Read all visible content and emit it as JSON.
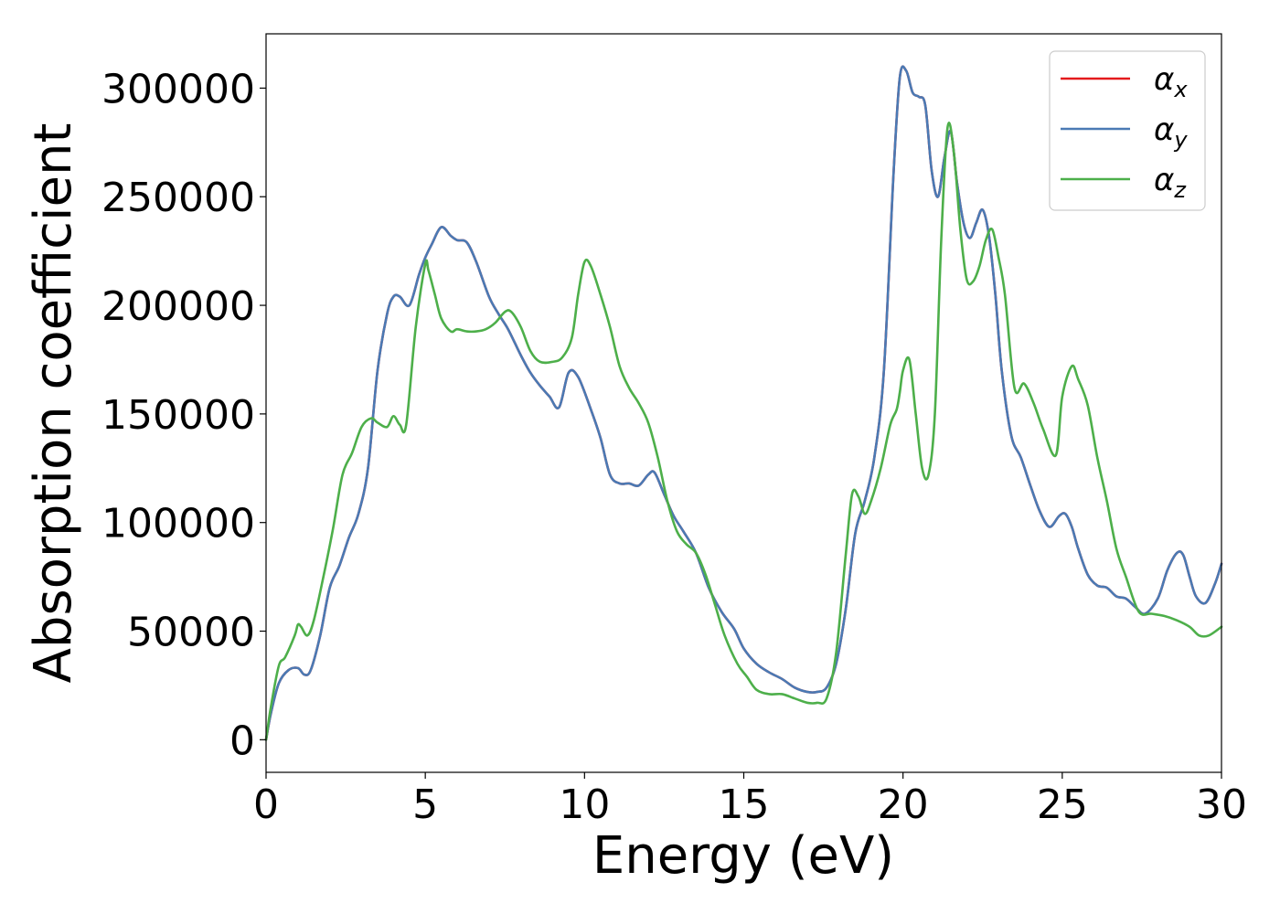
{
  "chart_data": {
    "type": "line",
    "xlabel": "Energy (eV)",
    "ylabel": "Absorption coefficient",
    "xlim": [
      0,
      30
    ],
    "ylim": [
      -15000,
      325000
    ],
    "xticks": [
      0,
      5,
      10,
      15,
      20,
      25,
      30
    ],
    "yticks": [
      0,
      50000,
      100000,
      150000,
      200000,
      250000,
      300000
    ],
    "grid": false,
    "legend_position": "top-right",
    "series": [
      {
        "name": "α",
        "subscript": "x",
        "color": "#e41a1c",
        "x": [
          0,
          0.15,
          0.4,
          0.7,
          1.0,
          1.2,
          1.4,
          1.7,
          2.0,
          2.3,
          2.6,
          2.9,
          3.2,
          3.5,
          3.8,
          4.0,
          4.2,
          4.5,
          4.8,
          5.0,
          5.2,
          5.5,
          5.8,
          6.0,
          6.3,
          6.6,
          7.0,
          7.3,
          7.6,
          8.0,
          8.3,
          8.6,
          8.9,
          9.2,
          9.5,
          9.8,
          10.2,
          10.5,
          10.8,
          11.1,
          11.4,
          11.7,
          12.0,
          12.2,
          12.5,
          12.8,
          13.1,
          13.5,
          13.9,
          14.3,
          14.7,
          15.0,
          15.4,
          15.8,
          16.2,
          16.6,
          17.0,
          17.3,
          17.6,
          17.9,
          18.2,
          18.5,
          18.8,
          19.1,
          19.4,
          19.7,
          19.9,
          20.1,
          20.3,
          20.5,
          20.7,
          20.9,
          21.1,
          21.3,
          21.5,
          21.7,
          21.9,
          22.1,
          22.3,
          22.5,
          22.7,
          22.9,
          23.1,
          23.4,
          23.7,
          24.0,
          24.3,
          24.6,
          24.9,
          25.1,
          25.3,
          25.5,
          25.8,
          26.1,
          26.4,
          26.7,
          27.0,
          27.3,
          27.6,
          28.0,
          28.3,
          28.6,
          28.8,
          29.0,
          29.2,
          29.5,
          29.8,
          30.0
        ],
        "y": [
          0,
          12000,
          26000,
          32000,
          33000,
          30000,
          32000,
          48000,
          70000,
          80000,
          93000,
          104000,
          125000,
          170000,
          196000,
          204000,
          204000,
          200000,
          214000,
          222000,
          228000,
          236000,
          232000,
          230000,
          229000,
          220000,
          204000,
          196000,
          189000,
          177000,
          169000,
          163000,
          158000,
          153000,
          169000,
          167000,
          152000,
          139000,
          122000,
          118000,
          118000,
          117000,
          122000,
          123000,
          113000,
          103000,
          96000,
          86000,
          70000,
          59000,
          51000,
          42000,
          35000,
          31000,
          28000,
          24000,
          22000,
          22000,
          24000,
          35000,
          60000,
          95000,
          110000,
          130000,
          170000,
          260000,
          305000,
          308000,
          298000,
          296000,
          292000,
          262000,
          250000,
          268000,
          280000,
          256000,
          238000,
          231000,
          238000,
          244000,
          232000,
          205000,
          170000,
          140000,
          130000,
          117000,
          105000,
          98000,
          103000,
          104000,
          98000,
          88000,
          76000,
          71000,
          70000,
          66000,
          65000,
          61000,
          58000,
          65000,
          78000,
          86000,
          85000,
          75000,
          66000,
          63000,
          72000,
          81000
        ]
      },
      {
        "name": "α",
        "subscript": "y",
        "color": "#4a7ab4",
        "x": [
          0,
          0.15,
          0.4,
          0.7,
          1.0,
          1.2,
          1.4,
          1.7,
          2.0,
          2.3,
          2.6,
          2.9,
          3.2,
          3.5,
          3.8,
          4.0,
          4.2,
          4.5,
          4.8,
          5.0,
          5.2,
          5.5,
          5.8,
          6.0,
          6.3,
          6.6,
          7.0,
          7.3,
          7.6,
          8.0,
          8.3,
          8.6,
          8.9,
          9.2,
          9.5,
          9.8,
          10.2,
          10.5,
          10.8,
          11.1,
          11.4,
          11.7,
          12.0,
          12.2,
          12.5,
          12.8,
          13.1,
          13.5,
          13.9,
          14.3,
          14.7,
          15.0,
          15.4,
          15.8,
          16.2,
          16.6,
          17.0,
          17.3,
          17.6,
          17.9,
          18.2,
          18.5,
          18.8,
          19.1,
          19.4,
          19.7,
          19.9,
          20.1,
          20.3,
          20.5,
          20.7,
          20.9,
          21.1,
          21.3,
          21.5,
          21.7,
          21.9,
          22.1,
          22.3,
          22.5,
          22.7,
          22.9,
          23.1,
          23.4,
          23.7,
          24.0,
          24.3,
          24.6,
          24.9,
          25.1,
          25.3,
          25.5,
          25.8,
          26.1,
          26.4,
          26.7,
          27.0,
          27.3,
          27.6,
          28.0,
          28.3,
          28.6,
          28.8,
          29.0,
          29.2,
          29.5,
          29.8,
          30.0
        ],
        "y": [
          0,
          12000,
          26000,
          32000,
          33000,
          30000,
          32000,
          48000,
          70000,
          80000,
          93000,
          104000,
          125000,
          170000,
          196000,
          204000,
          204000,
          200000,
          214000,
          222000,
          228000,
          236000,
          232000,
          230000,
          229000,
          220000,
          204000,
          196000,
          189000,
          177000,
          169000,
          163000,
          158000,
          153000,
          169000,
          167000,
          152000,
          139000,
          122000,
          118000,
          118000,
          117000,
          122000,
          123000,
          113000,
          103000,
          96000,
          86000,
          70000,
          59000,
          51000,
          42000,
          35000,
          31000,
          28000,
          24000,
          22000,
          22000,
          24000,
          35000,
          60000,
          95000,
          110000,
          130000,
          170000,
          260000,
          305000,
          308000,
          298000,
          296000,
          292000,
          262000,
          250000,
          268000,
          280000,
          256000,
          238000,
          231000,
          238000,
          244000,
          232000,
          205000,
          170000,
          140000,
          130000,
          117000,
          105000,
          98000,
          103000,
          104000,
          98000,
          88000,
          76000,
          71000,
          70000,
          66000,
          65000,
          61000,
          58000,
          65000,
          78000,
          86000,
          85000,
          75000,
          66000,
          63000,
          72000,
          81000
        ]
      },
      {
        "name": "α",
        "subscript": "z",
        "color": "#4daf4a",
        "x": [
          0,
          0.15,
          0.4,
          0.6,
          0.9,
          1.0,
          1.1,
          1.3,
          1.5,
          1.8,
          2.1,
          2.4,
          2.7,
          3.0,
          3.3,
          3.5,
          3.8,
          4.0,
          4.2,
          4.4,
          4.7,
          5.0,
          5.1,
          5.3,
          5.5,
          5.8,
          6.0,
          6.3,
          6.6,
          6.9,
          7.2,
          7.5,
          7.7,
          8.0,
          8.3,
          8.6,
          9.0,
          9.3,
          9.6,
          9.8,
          10.0,
          10.2,
          10.5,
          10.8,
          11.1,
          11.4,
          11.7,
          12.0,
          12.3,
          12.6,
          12.9,
          13.2,
          13.5,
          13.8,
          14.1,
          14.4,
          14.8,
          15.1,
          15.4,
          15.8,
          16.2,
          16.6,
          17.0,
          17.3,
          17.6,
          17.9,
          18.2,
          18.4,
          18.6,
          18.8,
          19.0,
          19.3,
          19.6,
          19.8,
          19.9,
          20.0,
          20.2,
          20.4,
          20.6,
          20.8,
          21.0,
          21.2,
          21.4,
          21.6,
          21.8,
          22.0,
          22.2,
          22.4,
          22.6,
          22.8,
          23.0,
          23.2,
          23.5,
          23.8,
          24.1,
          24.4,
          24.8,
          25.0,
          25.3,
          25.5,
          25.8,
          26.1,
          26.4,
          26.7,
          27.0,
          27.4,
          27.8,
          28.2,
          28.6,
          29.0,
          29.3,
          29.6,
          30.0
        ],
        "y": [
          0,
          15000,
          34000,
          38000,
          48000,
          53000,
          52000,
          48000,
          55000,
          75000,
          97000,
          122000,
          132000,
          144000,
          148000,
          146000,
          144000,
          149000,
          145000,
          145000,
          190000,
          219000,
          216000,
          205000,
          194000,
          188000,
          189000,
          188000,
          188000,
          189000,
          192000,
          197000,
          197000,
          190000,
          179000,
          174000,
          174000,
          176000,
          185000,
          205000,
          220000,
          218000,
          205000,
          190000,
          172000,
          162000,
          155000,
          146000,
          130000,
          110000,
          96000,
          90000,
          86000,
          76000,
          62000,
          48000,
          35000,
          29000,
          23000,
          21000,
          21000,
          19000,
          17000,
          17000,
          19000,
          40000,
          85000,
          113000,
          112000,
          104000,
          110000,
          125000,
          145000,
          152000,
          160000,
          170000,
          175000,
          150000,
          125000,
          122000,
          150000,
          230000,
          282000,
          270000,
          235000,
          212000,
          211000,
          218000,
          230000,
          235000,
          222000,
          205000,
          162000,
          164000,
          155000,
          143000,
          131000,
          158000,
          172000,
          166000,
          154000,
          130000,
          110000,
          88000,
          75000,
          59000,
          58000,
          57000,
          55000,
          52000,
          48000,
          48000,
          52000
        ]
      }
    ]
  }
}
